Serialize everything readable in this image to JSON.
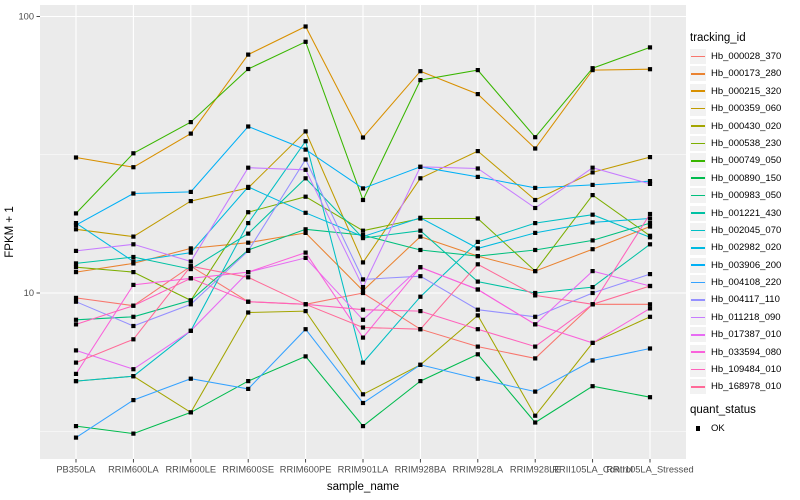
{
  "panel": {
    "bg": "#EBEBEB",
    "grid_color": "#FFFFFF",
    "axis_text_color": "#4D4D4D",
    "marker_color": "#000000"
  },
  "y_axis": {
    "title": "FPKM + 1",
    "scale": "log10",
    "major_ticks": [
      {
        "label": "100",
        "value": 100
      },
      {
        "label": "10",
        "value": 10
      }
    ],
    "minor_values": [
      31.62,
      3.162
    ]
  },
  "x_axis": {
    "title": "sample_name"
  },
  "legend": {
    "tracking_title": "tracking_id",
    "quant_title": "quant_status",
    "quant_ok_label": "OK"
  },
  "chart_data": {
    "type": "line",
    "title": "",
    "xlabel": "sample_name",
    "ylabel": "FPKM + 1",
    "y_scale": "log10",
    "ylim": [
      2.4,
      110
    ],
    "grid": true,
    "legend_position": "right",
    "point_shape": "filled-black-square",
    "quant_status_all": "OK",
    "x": [
      "PB350LA",
      "RRIM600LA",
      "RRIM600LE",
      "RRIM600SE",
      "RRIM600PE",
      "RRIM901LA",
      "RRIM928BA",
      "RRIM928LA",
      "RRIM928LE",
      "RRII105LA_Control",
      "RRII105LA_Stressed"
    ],
    "series": [
      {
        "name": "Hb_000028_370",
        "color": "#F8766D",
        "values": [
          9.6,
          9.0,
          12.5,
          9.3,
          9.1,
          10.0,
          7.4,
          6.4,
          5.8,
          9.1,
          9.1
        ]
      },
      {
        "name": "Hb_000173_280",
        "color": "#EA8331",
        "values": [
          11.9,
          12.8,
          14.5,
          15.2,
          16.5,
          10.2,
          16.0,
          13.6,
          12.0,
          14.4,
          17.4
        ]
      },
      {
        "name": "Hb_000215_320",
        "color": "#D89000",
        "values": [
          30.9,
          28.5,
          37.7,
          72.8,
          92.0,
          36.5,
          63.4,
          52.4,
          33.3,
          64.0,
          64.5
        ]
      },
      {
        "name": "Hb_000359_060",
        "color": "#C09B00",
        "values": [
          17.0,
          16.0,
          21.5,
          24.0,
          38.4,
          12.9,
          26.0,
          32.6,
          21.7,
          27.3,
          31.0
        ]
      },
      {
        "name": "Hb_000430_020",
        "color": "#A3A500",
        "values": [
          4.8,
          5.0,
          3.7,
          8.5,
          8.6,
          4.3,
          5.5,
          8.3,
          3.6,
          6.6,
          8.2
        ]
      },
      {
        "name": "Hb_000538_230",
        "color": "#7CAE00",
        "values": [
          12.4,
          11.9,
          9.4,
          19.6,
          22.3,
          16.8,
          18.6,
          18.6,
          12.0,
          22.6,
          16.1
        ]
      },
      {
        "name": "Hb_000749_050",
        "color": "#39B600",
        "values": [
          19.4,
          32.0,
          41.5,
          64.6,
          81.0,
          21.7,
          58.9,
          64.0,
          36.6,
          65.0,
          77.3
        ]
      },
      {
        "name": "Hb_000890_150",
        "color": "#00BB4E",
        "values": [
          3.3,
          3.1,
          3.7,
          4.8,
          5.9,
          3.3,
          4.8,
          6.0,
          3.4,
          4.6,
          4.2
        ]
      },
      {
        "name": "Hb_000983_050",
        "color": "#00BF7D",
        "values": [
          8.0,
          8.2,
          9.4,
          14.3,
          17.0,
          16.2,
          14.3,
          13.6,
          14.3,
          15.5,
          17.9
        ]
      },
      {
        "name": "Hb_001221_430",
        "color": "#00C1A3",
        "values": [
          12.8,
          13.5,
          12.2,
          16.4,
          26.0,
          15.8,
          16.8,
          11.0,
          10.0,
          10.5,
          15.0
        ]
      },
      {
        "name": "Hb_002045_070",
        "color": "#00BFC4",
        "values": [
          4.8,
          5.0,
          7.3,
          17.9,
          35.4,
          5.6,
          9.7,
          15.3,
          17.9,
          19.2,
          15.9
        ]
      },
      {
        "name": "Hb_002982_020",
        "color": "#00BAE0",
        "values": [
          17.9,
          13.0,
          14.0,
          24.2,
          19.5,
          16.0,
          18.7,
          14.5,
          16.5,
          18.0,
          18.6
        ]
      },
      {
        "name": "Hb_003906_200",
        "color": "#00B0F6",
        "values": [
          17.6,
          22.9,
          23.2,
          40.0,
          33.0,
          23.9,
          28.6,
          26.3,
          24.0,
          24.6,
          25.4
        ]
      },
      {
        "name": "Hb_004108_220",
        "color": "#35A2FF",
        "values": [
          3.0,
          4.1,
          4.9,
          4.5,
          7.4,
          4.0,
          5.5,
          4.9,
          4.4,
          5.7,
          6.3
        ]
      },
      {
        "name": "Hb_004117_110",
        "color": "#9590FF",
        "values": [
          9.3,
          7.6,
          9.1,
          14.2,
          30.4,
          11.2,
          11.5,
          8.7,
          8.2,
          10.0,
          11.7
        ]
      },
      {
        "name": "Hb_011218_090",
        "color": "#C77CFF",
        "values": [
          14.2,
          15.0,
          13.0,
          28.4,
          27.9,
          10.5,
          28.6,
          28.2,
          20.3,
          28.4,
          24.8
        ]
      },
      {
        "name": "Hb_017387_010",
        "color": "#E76BF3",
        "values": [
          6.2,
          5.3,
          7.3,
          11.9,
          13.4,
          8.0,
          12.4,
          10.3,
          7.7,
          12.0,
          10.6
        ]
      },
      {
        "name": "Hb_033594_080",
        "color": "#FA62DB",
        "values": [
          5.1,
          10.7,
          11.3,
          11.9,
          14.0,
          6.9,
          12.4,
          10.3,
          7.7,
          6.6,
          8.8
        ]
      },
      {
        "name": "Hb_109484_010",
        "color": "#FF62BC",
        "values": [
          7.7,
          9.0,
          11.3,
          9.3,
          9.1,
          8.7,
          8.6,
          7.4,
          6.4,
          9.1,
          19.3
        ]
      },
      {
        "name": "Hb_168978_010",
        "color": "#FF6A98",
        "values": [
          5.6,
          6.8,
          12.5,
          11.4,
          9.1,
          7.5,
          7.4,
          12.7,
          9.8,
          9.1,
          10.6
        ]
      }
    ]
  }
}
